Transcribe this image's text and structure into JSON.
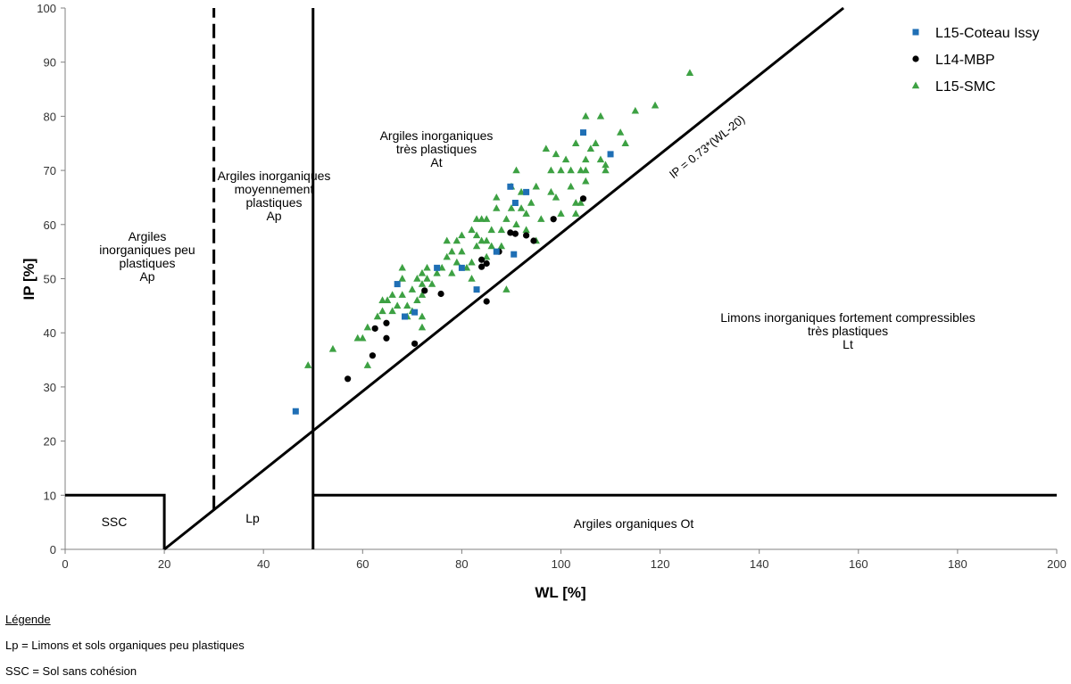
{
  "chart_data": {
    "type": "scatter",
    "title": "",
    "xlabel": "WL [%]",
    "ylabel": "IP [%]",
    "xlim": [
      0,
      200
    ],
    "ylim": [
      0,
      100
    ],
    "xticks": [
      0,
      20,
      40,
      60,
      80,
      100,
      120,
      140,
      160,
      180,
      200
    ],
    "yticks": [
      0,
      10,
      20,
      30,
      40,
      50,
      60,
      70,
      80,
      90,
      100
    ],
    "legend_position": "top-right",
    "series": [
      {
        "name": "L15-Coteau Issy",
        "marker": "square",
        "color": "#1f6fb5",
        "points": [
          [
            46.5,
            25.5
          ],
          [
            67,
            49
          ],
          [
            68.5,
            43
          ],
          [
            70.5,
            43.8
          ],
          [
            75,
            52
          ],
          [
            80,
            52
          ],
          [
            83,
            48
          ],
          [
            87,
            55
          ],
          [
            89.8,
            67
          ],
          [
            90.8,
            64
          ],
          [
            90.5,
            54.5
          ],
          [
            93,
            66
          ],
          [
            104.5,
            77
          ],
          [
            110,
            73
          ]
        ]
      },
      {
        "name": "L14-MBP",
        "marker": "circle",
        "color": "#000000",
        "points": [
          [
            57,
            31.5
          ],
          [
            62,
            35.8
          ],
          [
            62.5,
            40.8
          ],
          [
            64.8,
            39
          ],
          [
            64.8,
            41.8
          ],
          [
            70.5,
            38
          ],
          [
            72.5,
            47.8
          ],
          [
            75.8,
            47.2
          ],
          [
            84,
            53.5
          ],
          [
            84,
            52.2
          ],
          [
            85,
            45.8
          ],
          [
            85,
            52.8
          ],
          [
            87.5,
            55
          ],
          [
            89.8,
            58.5
          ],
          [
            90.8,
            58.3
          ],
          [
            93,
            58
          ],
          [
            94.5,
            57
          ],
          [
            98.5,
            61
          ],
          [
            104.5,
            64.8
          ]
        ]
      },
      {
        "name": "L15-SMC",
        "marker": "triangle",
        "color": "#3da143",
        "points": [
          [
            49,
            34
          ],
          [
            54,
            37
          ],
          [
            59,
            39
          ],
          [
            60,
            39
          ],
          [
            61,
            41
          ],
          [
            61,
            34
          ],
          [
            63,
            43
          ],
          [
            64,
            44
          ],
          [
            64,
            46
          ],
          [
            65,
            46
          ],
          [
            66,
            44
          ],
          [
            66,
            47
          ],
          [
            67,
            45
          ],
          [
            68,
            52
          ],
          [
            68,
            50
          ],
          [
            68,
            47
          ],
          [
            69,
            45
          ],
          [
            69,
            43
          ],
          [
            70,
            48
          ],
          [
            70,
            44
          ],
          [
            71,
            50
          ],
          [
            71,
            46
          ],
          [
            72,
            51
          ],
          [
            72,
            49
          ],
          [
            72,
            47
          ],
          [
            72,
            43
          ],
          [
            72,
            41
          ],
          [
            73,
            52
          ],
          [
            73,
            50
          ],
          [
            74,
            49
          ],
          [
            75,
            51
          ],
          [
            76,
            52
          ],
          [
            77,
            54
          ],
          [
            77,
            57
          ],
          [
            78,
            51
          ],
          [
            78,
            55
          ],
          [
            79,
            53
          ],
          [
            79,
            57
          ],
          [
            80,
            55
          ],
          [
            80,
            58
          ],
          [
            81,
            52
          ],
          [
            82,
            50
          ],
          [
            82,
            53
          ],
          [
            82,
            59
          ],
          [
            83,
            56
          ],
          [
            83,
            58
          ],
          [
            83,
            61
          ],
          [
            84,
            57
          ],
          [
            84,
            61
          ],
          [
            85,
            54
          ],
          [
            85,
            57
          ],
          [
            85,
            61
          ],
          [
            86,
            56
          ],
          [
            86,
            59
          ],
          [
            87,
            63
          ],
          [
            87,
            65
          ],
          [
            88,
            56
          ],
          [
            88,
            59
          ],
          [
            89,
            48
          ],
          [
            89,
            61
          ],
          [
            90,
            63
          ],
          [
            90,
            67
          ],
          [
            91,
            60
          ],
          [
            91,
            70
          ],
          [
            92,
            63
          ],
          [
            92,
            66
          ],
          [
            93,
            62
          ],
          [
            93,
            59
          ],
          [
            94,
            64
          ],
          [
            95,
            67
          ],
          [
            95,
            57
          ],
          [
            96,
            61
          ],
          [
            97,
            74
          ],
          [
            98,
            66
          ],
          [
            98,
            70
          ],
          [
            99,
            65
          ],
          [
            99,
            73
          ],
          [
            100,
            62
          ],
          [
            100,
            70
          ],
          [
            101,
            72
          ],
          [
            102,
            67
          ],
          [
            102,
            70
          ],
          [
            103,
            62
          ],
          [
            103,
            64
          ],
          [
            103,
            75
          ],
          [
            104,
            70
          ],
          [
            104,
            64
          ],
          [
            105,
            80
          ],
          [
            105,
            68
          ],
          [
            105,
            72
          ],
          [
            105,
            70
          ],
          [
            106,
            74
          ],
          [
            107,
            75
          ],
          [
            108,
            80
          ],
          [
            108,
            72
          ],
          [
            109,
            70
          ],
          [
            109,
            71
          ],
          [
            112,
            77
          ],
          [
            113,
            75
          ],
          [
            115,
            81
          ],
          [
            119,
            82
          ],
          [
            126,
            88
          ]
        ]
      }
    ],
    "lines": [
      {
        "label": "IP = 0.73*(WL-20)",
        "style": "solid"
      },
      {
        "label": "WL = 30",
        "style": "dashed"
      },
      {
        "label": "WL = 50",
        "style": "solid"
      },
      {
        "label": "IP = 10 (WL > 50)",
        "style": "solid"
      },
      {
        "label": "SSC boundary: IP = 10 for WL < 20",
        "style": "solid"
      }
    ],
    "line_annotation": "IP = 0.73*(WL-20)",
    "zones": [
      {
        "id": "ap-low",
        "lines": [
          "Argiles",
          "inorganiques peu",
          "plastiques",
          "Ap"
        ]
      },
      {
        "id": "ap-mid",
        "lines": [
          "Argiles inorganiques",
          "moyennement",
          "plastiques",
          "",
          "Ap"
        ]
      },
      {
        "id": "at",
        "lines": [
          "Argiles inorganiques",
          "très plastiques",
          "At"
        ]
      },
      {
        "id": "lt",
        "lines": [
          "Limons inorganiques fortement compressibles",
          "très plastiques",
          "Lt"
        ]
      },
      {
        "id": "ssc",
        "lines": [
          "SSC"
        ]
      },
      {
        "id": "lp",
        "lines": [
          "Lp"
        ]
      },
      {
        "id": "ot",
        "lines": [
          "Argiles organiques Ot"
        ]
      }
    ]
  },
  "notes": {
    "title": "Légende",
    "items": [
      "Lp = Limons et sols organiques peu plastiques",
      "SSC = Sol sans cohésion"
    ]
  }
}
